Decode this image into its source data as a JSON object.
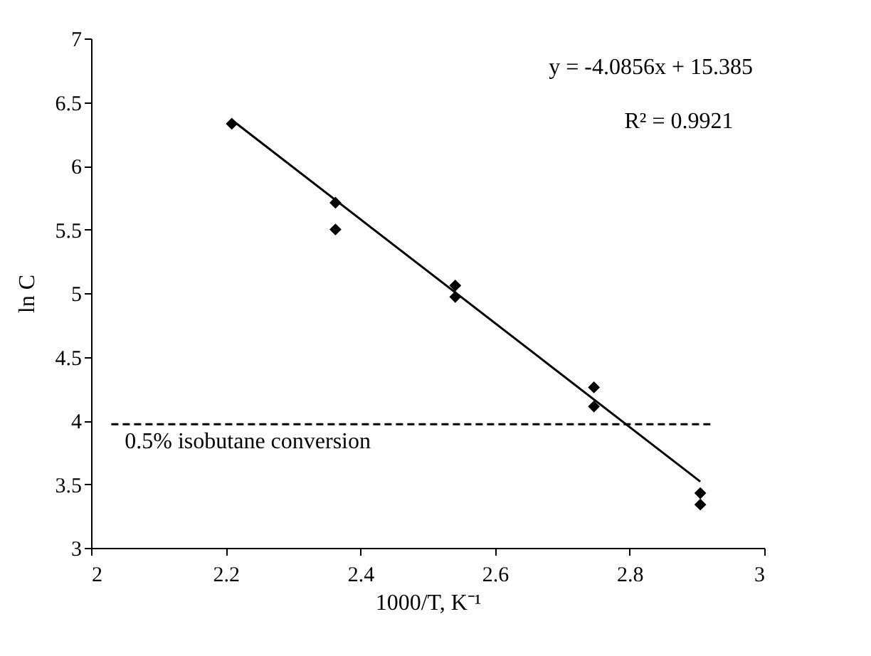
{
  "chart_data": {
    "type": "scatter",
    "xlabel": "1000/T, K⁻¹",
    "ylabel": "ln C",
    "xlim": [
      2,
      3
    ],
    "xticks": [
      2,
      2.2,
      2.4,
      2.6,
      2.8,
      3
    ],
    "ylim": [
      3,
      7
    ],
    "yticks": [
      3,
      3.5,
      4,
      4.5,
      5,
      5.5,
      6,
      6.5,
      7
    ],
    "grid": false,
    "marker": "diamond",
    "series": [
      {
        "color": "#000000",
        "x": [
          2.209,
          2.363,
          2.363,
          2.541,
          2.541,
          2.747,
          2.747,
          2.905,
          2.905
        ],
        "values": [
          6.33,
          5.71,
          5.5,
          5.06,
          4.97,
          4.26,
          4.11,
          3.43,
          3.34
        ]
      },
      {
        "type": "line",
        "color": "#000000",
        "line_style": "solid",
        "marker": "none",
        "x": [
          2.209,
          2.905
        ],
        "values": [
          6.36,
          3.52
        ]
      },
      {
        "type": "line",
        "color": "#000000",
        "line_style": "dashed",
        "marker": "none",
        "x": [
          2.03,
          2.92
        ],
        "values": [
          3.97,
          3.97
        ]
      }
    ],
    "annotations": [
      "y = -4.0856x + 15.385",
      "R² = 0.9921",
      {
        "text": "0.5% isobutane conversion",
        "x": 2.05,
        "y": 3.97
      }
    ]
  }
}
